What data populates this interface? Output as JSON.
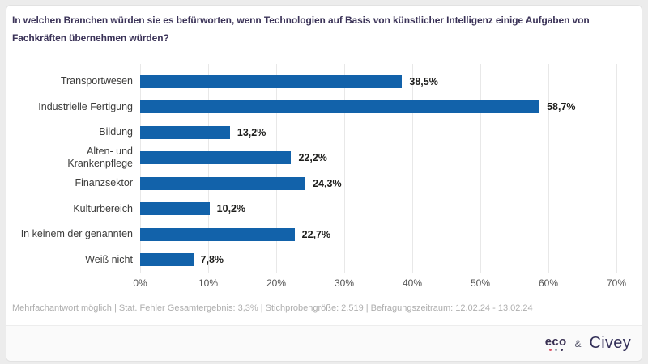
{
  "header": {
    "title": "In welchen Branchen würden sie es befürworten, wenn Technologien auf Basis von künstlicher Intelligenz einige Aufgaben von Fachkräften übernehmen würden?"
  },
  "chart_data": {
    "type": "bar",
    "orientation": "horizontal",
    "categories": [
      "Transportwesen",
      "Industrielle Fertigung",
      "Bildung",
      "Alten- und\nKrankenpflege",
      "Finanzsektor",
      "Kulturbereich",
      "In keinem der genannten",
      "Weiß nicht"
    ],
    "values": [
      38.5,
      58.7,
      13.2,
      22.2,
      24.3,
      10.2,
      22.7,
      7.8
    ],
    "value_labels": [
      "38,5%",
      "58,7%",
      "13,2%",
      "22,2%",
      "24,3%",
      "10,2%",
      "22,7%",
      "7,8%"
    ],
    "x_ticks": [
      "0%",
      "10%",
      "20%",
      "30%",
      "40%",
      "50%",
      "60%",
      "70%"
    ],
    "x_tick_values": [
      0,
      10,
      20,
      30,
      40,
      50,
      60,
      70
    ],
    "xlim": [
      0,
      70
    ],
    "grid": true,
    "legend": false,
    "bar_color": "#1262aa",
    "grid_color": "#e8e8e8"
  },
  "footer": {
    "note": "Mehrfachantwort möglich | Stat. Fehler Gesamtergebnis: 3,3% | Stichprobengröße: 2.519 | Befragungszeitraum: 12.02.24 - 13.02.24"
  },
  "brand": {
    "eco_label": "eco",
    "eco_dot_colors": [
      "#d95568",
      "#9aa3b0",
      "#3a3153"
    ],
    "ampersand": "&",
    "civey_label": "Civey"
  },
  "colors": {
    "title": "#3b3358",
    "bar": "#1262aa",
    "page_background": "#ececec",
    "card_background": "#ffffff",
    "brandbar_background": "#fafafa"
  }
}
